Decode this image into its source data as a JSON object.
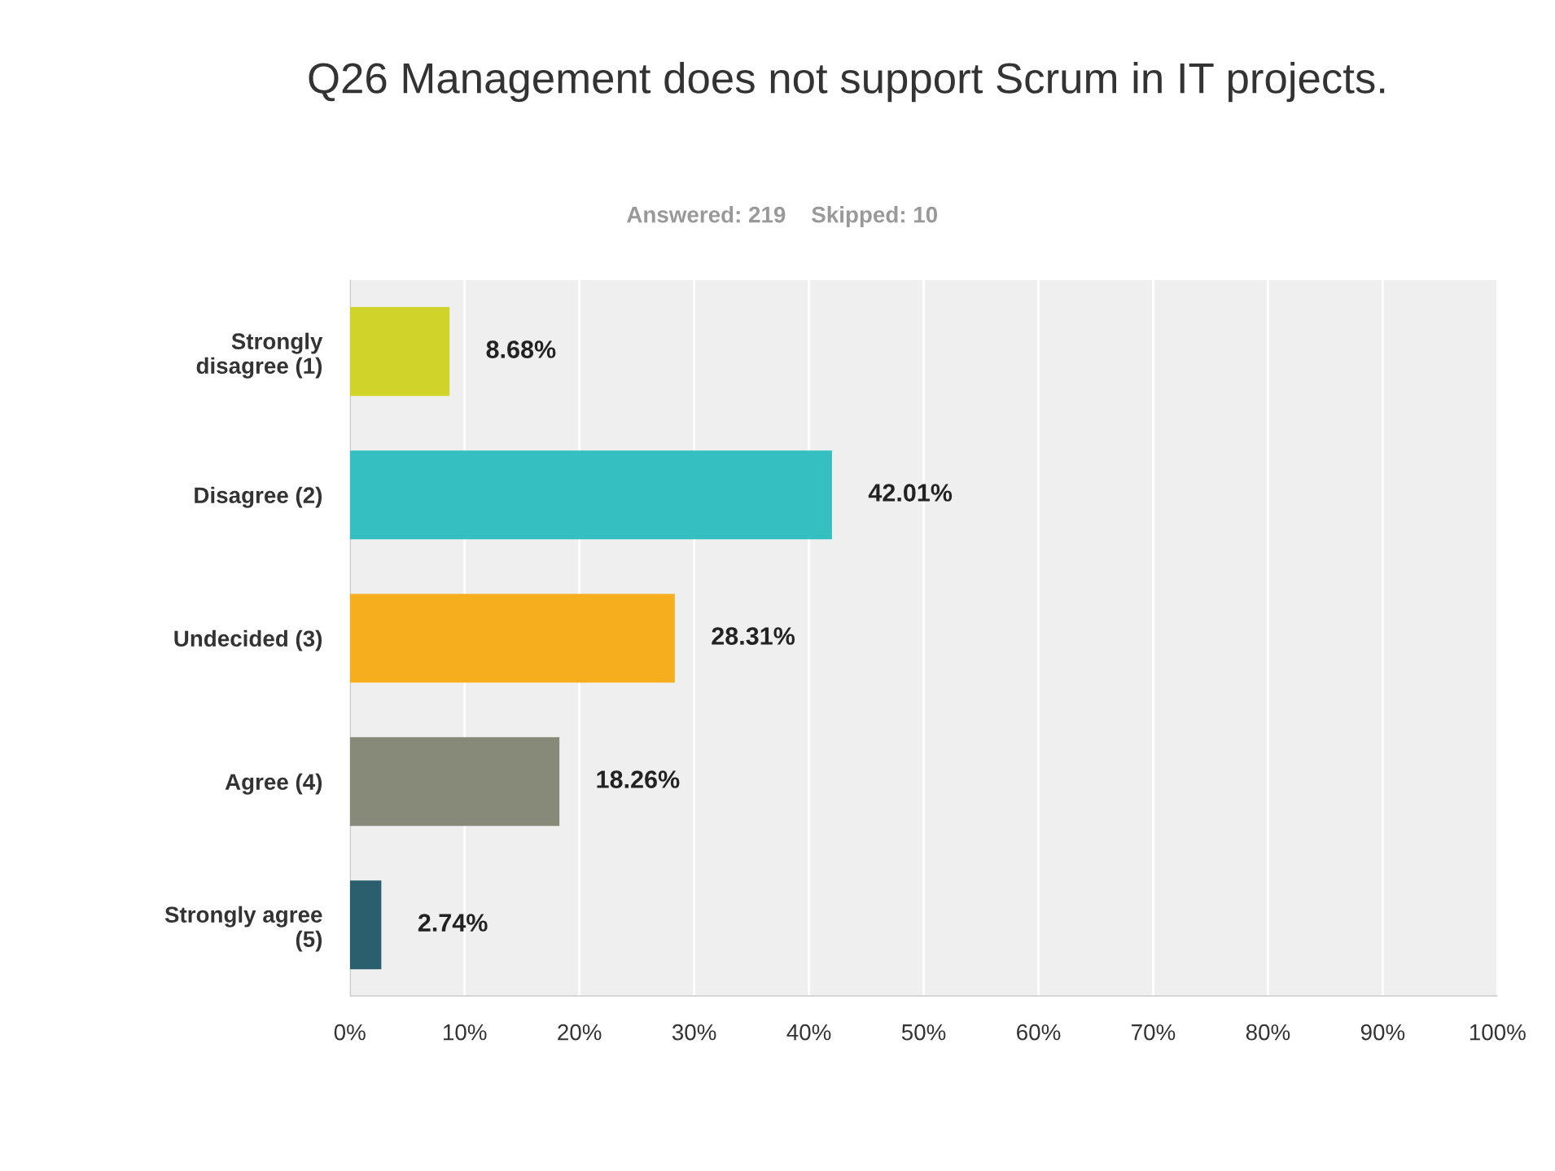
{
  "chart_data": {
    "type": "bar",
    "orientation": "horizontal",
    "title": "Q26 Management does not support Scrum in IT projects.",
    "subtitle": "Answered: 219    Skipped: 10",
    "categories": [
      "Strongly\ndisagree (1)",
      "Disagree (2)",
      "Undecided (3)",
      "Agree (4)",
      "Strongly agree\n(5)"
    ],
    "values": [
      8.68,
      42.01,
      28.31,
      18.26,
      2.74
    ],
    "colors": [
      "#d0d42a",
      "#35bfc1",
      "#f6ae1f",
      "#888a79",
      "#2b5f6e"
    ],
    "value_labels": [
      "8.68%",
      "42.01%",
      "28.31%",
      "18.26%",
      "2.74%"
    ],
    "xlim": [
      0,
      100
    ],
    "xticks": [
      {
        "value": 0,
        "label": "0%"
      },
      {
        "value": 10,
        "label": "10%"
      },
      {
        "value": 20,
        "label": "20%"
      },
      {
        "value": 30,
        "label": "30%"
      },
      {
        "value": 40,
        "label": "40%"
      },
      {
        "value": 50,
        "label": "50%"
      },
      {
        "value": 60,
        "label": "60%"
      },
      {
        "value": 70,
        "label": "70%"
      },
      {
        "value": 80,
        "label": "80%"
      },
      {
        "value": 90,
        "label": "90%"
      },
      {
        "value": 100,
        "label": "100%"
      }
    ],
    "grid": "x"
  }
}
